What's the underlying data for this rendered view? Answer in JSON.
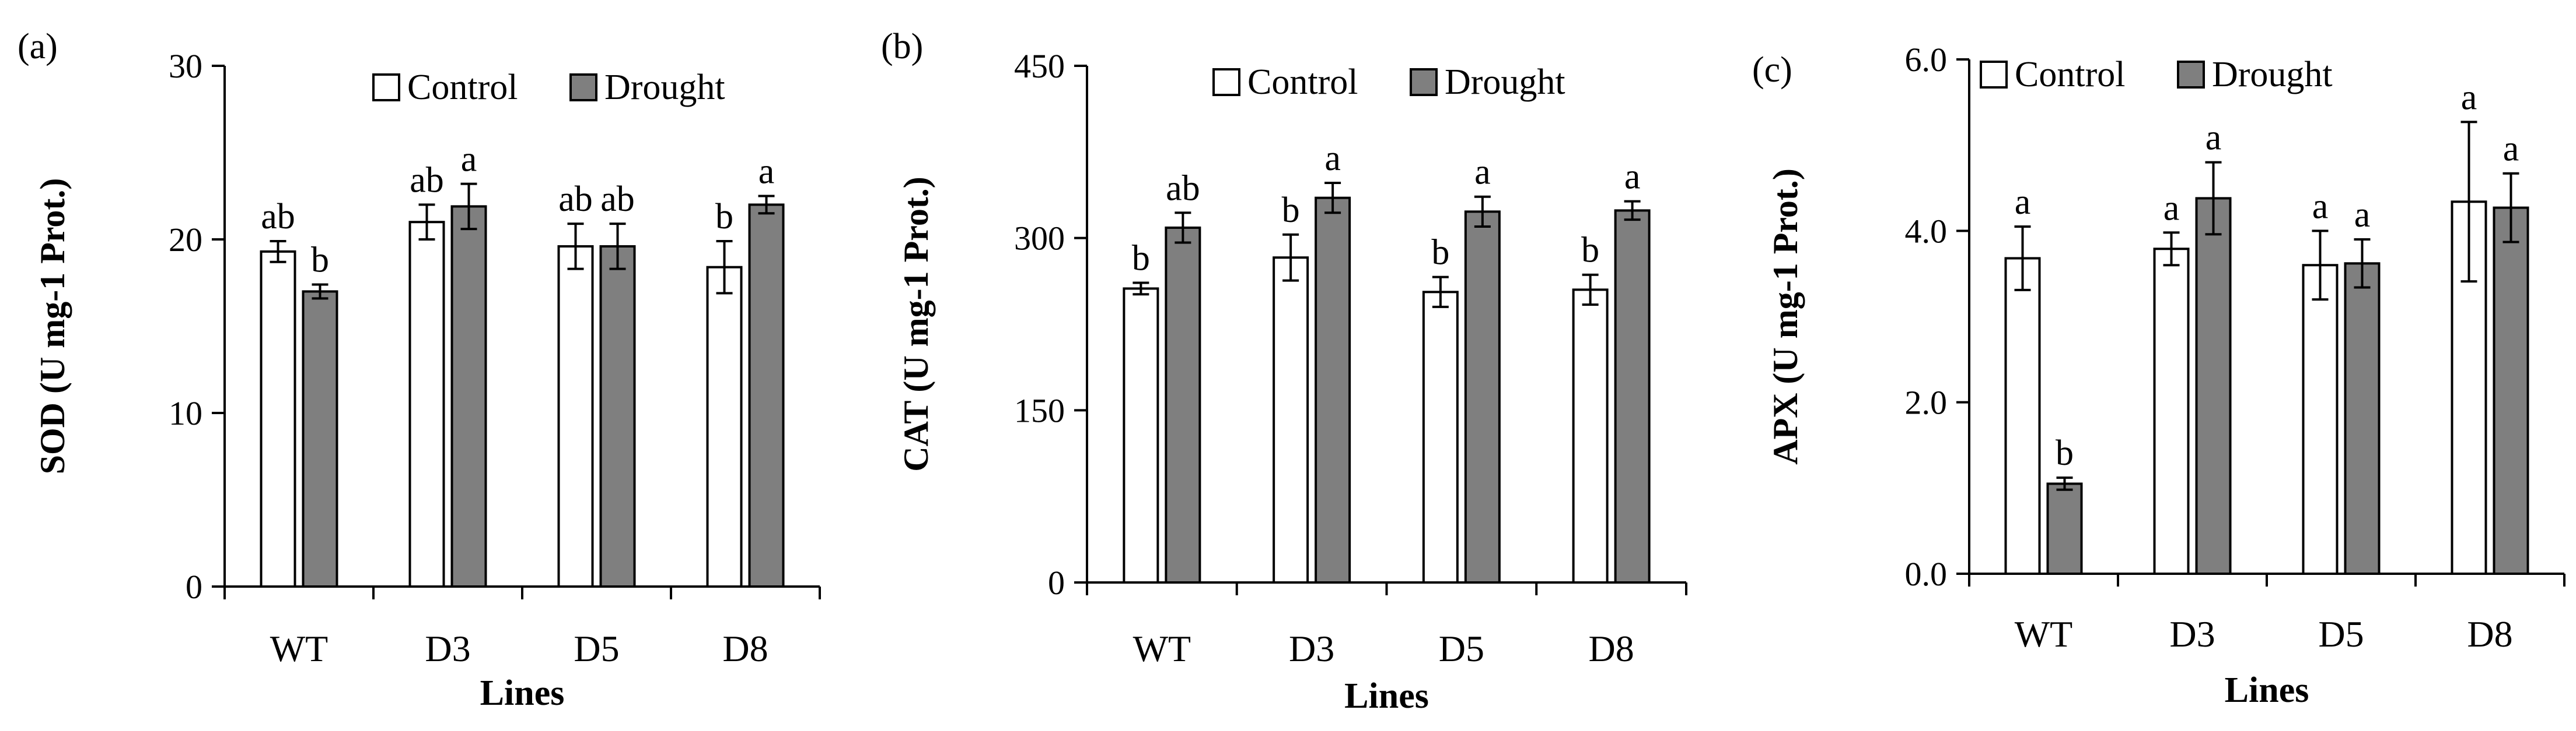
{
  "colors": {
    "control_fill": "#ffffff",
    "drought_fill": "#7f7f7f",
    "axis": "#000000"
  },
  "chart_data": [
    {
      "type": "bar",
      "panel_label": "(a)",
      "categories": [
        "WT",
        "D3",
        "D5",
        "D8"
      ],
      "ylabel": "SOD (U mg-1 Prot.)",
      "xlabel": "Lines",
      "ylim": [
        0,
        30
      ],
      "yticks": [
        0,
        10,
        20,
        30
      ],
      "ytick_labels": [
        "0",
        "10",
        "20",
        "30"
      ],
      "legend": [
        "Control",
        "Drought"
      ],
      "series": [
        {
          "name": "Control",
          "values": [
            19.3,
            21.0,
            19.6,
            18.4
          ],
          "errors": [
            0.6,
            1.0,
            1.3,
            1.5
          ],
          "letters": [
            "ab",
            "ab",
            "ab",
            "b"
          ]
        },
        {
          "name": "Drought",
          "values": [
            17.0,
            21.9,
            19.6,
            22.0
          ],
          "errors": [
            0.4,
            1.3,
            1.3,
            0.5
          ],
          "letters": [
            "b",
            "a",
            "ab",
            "a"
          ]
        }
      ]
    },
    {
      "type": "bar",
      "panel_label": "(b)",
      "categories": [
        "WT",
        "D3",
        "D5",
        "D8"
      ],
      "ylabel": "CAT (U mg-1 Prot.)",
      "xlabel": "Lines",
      "ylim": [
        0,
        450
      ],
      "yticks": [
        0,
        150,
        300,
        450
      ],
      "ytick_labels": [
        "0",
        "150",
        "300",
        "450"
      ],
      "legend": [
        "Control",
        "Drought"
      ],
      "series": [
        {
          "name": "Control",
          "values": [
            256,
            283,
            253,
            255
          ],
          "errors": [
            5,
            20,
            13,
            13
          ],
          "letters": [
            "b",
            "b",
            "b",
            "b"
          ]
        },
        {
          "name": "Drought",
          "values": [
            309,
            335,
            323,
            324
          ],
          "errors": [
            13,
            13,
            13,
            8
          ],
          "letters": [
            "ab",
            "a",
            "a",
            "a"
          ]
        }
      ]
    },
    {
      "type": "bar",
      "panel_label": "(c)",
      "categories": [
        "WT",
        "D3",
        "D5",
        "D8"
      ],
      "ylabel": "APX (U mg-1 Prot.)",
      "xlabel": "Lines",
      "ylim": [
        0,
        6
      ],
      "yticks": [
        0,
        2,
        4,
        6
      ],
      "ytick_labels": [
        "0.0",
        "2.0",
        "4.0",
        "6.0"
      ],
      "legend": [
        "Control",
        "Drought"
      ],
      "series": [
        {
          "name": "Control",
          "values": [
            3.68,
            3.79,
            3.6,
            4.34
          ],
          "errors": [
            0.37,
            0.19,
            0.4,
            0.93
          ],
          "letters": [
            "a",
            "a",
            "a",
            "a"
          ]
        },
        {
          "name": "Drought",
          "values": [
            1.05,
            4.38,
            3.62,
            4.27
          ],
          "errors": [
            0.07,
            0.42,
            0.28,
            0.4
          ],
          "letters": [
            "b",
            "a",
            "a",
            "a"
          ]
        }
      ]
    }
  ]
}
